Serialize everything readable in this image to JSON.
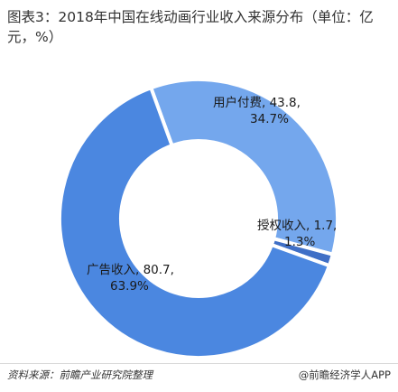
{
  "title": "图表3：2018年中国在线动画行业收入来源分布（单位：亿元，%）",
  "chart_data": {
    "type": "pie",
    "donut": true,
    "title": "图表3：2018年中国在线动画行业收入来源分布（单位：亿元，%）",
    "unit": "亿元，%",
    "slices": [
      {
        "name": "用户付费",
        "value": 43.8,
        "percent": "34.7%",
        "color": "#74a7ed"
      },
      {
        "name": "授权收入",
        "value": 1.7,
        "percent": "1.3%",
        "color": "#3f6fc6"
      },
      {
        "name": "广告收入",
        "value": 80.7,
        "percent": "63.9%",
        "color": "#4b87e0"
      }
    ],
    "labels": [
      {
        "line1": "用户付费, 43.8,",
        "line2": "34.7%"
      },
      {
        "line1": "授权收入, 1.7,",
        "line2": "1.3%"
      },
      {
        "line1": "广告收入, 80.7,",
        "line2": "63.9%"
      }
    ]
  },
  "footer": {
    "source": "资料来源：前瞻产业研究院整理",
    "brand": "@前瞻经济学人APP"
  }
}
